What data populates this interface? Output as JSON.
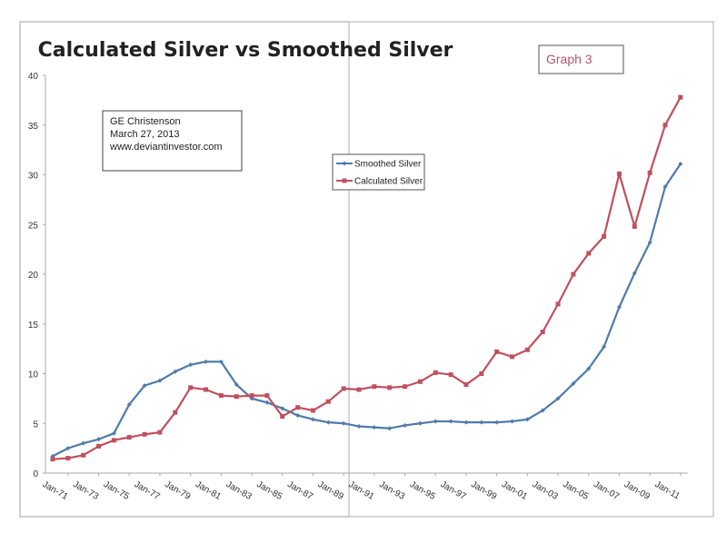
{
  "chart_data": {
    "type": "line",
    "title": "Calculated Silver vs Smoothed Silver",
    "tag": "Graph 3",
    "annotation": [
      "GE Christenson",
      "March 27, 2013",
      "www.deviantinvestor.com"
    ],
    "xlabel": "",
    "ylabel": "",
    "ylim": [
      0,
      40
    ],
    "yticks": [
      0,
      5,
      10,
      15,
      20,
      25,
      30,
      35,
      40
    ],
    "x": [
      "Jan-71",
      "Jan-72",
      "Jan-73",
      "Jan-74",
      "Jan-75",
      "Jan-76",
      "Jan-77",
      "Jan-78",
      "Jan-79",
      "Jan-80",
      "Jan-81",
      "Jan-82",
      "Jan-83",
      "Jan-84",
      "Jan-85",
      "Jan-86",
      "Jan-87",
      "Jan-88",
      "Jan-89",
      "Jan-90",
      "Jan-91",
      "Jan-92",
      "Jan-93",
      "Jan-94",
      "Jan-95",
      "Jan-96",
      "Jan-97",
      "Jan-98",
      "Jan-99",
      "Jan-00",
      "Jan-01",
      "Jan-02",
      "Jan-03",
      "Jan-04",
      "Jan-05",
      "Jan-06",
      "Jan-07",
      "Jan-08",
      "Jan-09",
      "Jan-10",
      "Jan-11",
      "Jan-12"
    ],
    "xtick_labels": [
      "Jan-71",
      "Jan-73",
      "Jan-75",
      "Jan-77",
      "Jan-79",
      "Jan-81",
      "Jan-83",
      "Jan-85",
      "Jan-87",
      "Jan-89",
      "Jan-91",
      "Jan-93",
      "Jan-95",
      "Jan-97",
      "Jan-99",
      "Jan-01",
      "Jan-03",
      "Jan-05",
      "Jan-07",
      "Jan-09",
      "Jan-11"
    ],
    "grid": false,
    "legend_position": "center",
    "series": [
      {
        "name": "Smoothed Silver",
        "color": "#4f7bab",
        "marker": "diamond",
        "values": [
          1.7,
          2.5,
          3.0,
          3.4,
          4.0,
          6.9,
          8.8,
          9.3,
          10.2,
          10.9,
          11.2,
          11.2,
          8.9,
          7.5,
          7.1,
          6.5,
          5.8,
          5.4,
          5.1,
          5.0,
          4.7,
          4.6,
          4.5,
          4.8,
          5.0,
          5.2,
          5.2,
          5.1,
          5.1,
          5.1,
          5.2,
          5.4,
          6.3,
          7.5,
          9.0,
          10.5,
          12.7,
          16.7,
          20.1,
          23.2,
          28.8,
          31.1
        ]
      },
      {
        "name": "Calculated Silver",
        "color": "#c0505d",
        "marker": "square",
        "values": [
          1.4,
          1.5,
          1.8,
          2.7,
          3.3,
          3.6,
          3.9,
          4.1,
          6.1,
          8.6,
          8.4,
          7.8,
          7.7,
          7.8,
          7.8,
          5.7,
          6.6,
          6.3,
          7.2,
          8.5,
          8.4,
          8.7,
          8.6,
          8.7,
          9.2,
          10.1,
          9.9,
          8.9,
          10.0,
          12.2,
          11.7,
          12.4,
          14.2,
          17.0,
          20.0,
          22.1,
          23.8,
          30.1,
          24.8,
          30.2,
          35.0,
          37.8
        ]
      }
    ]
  }
}
